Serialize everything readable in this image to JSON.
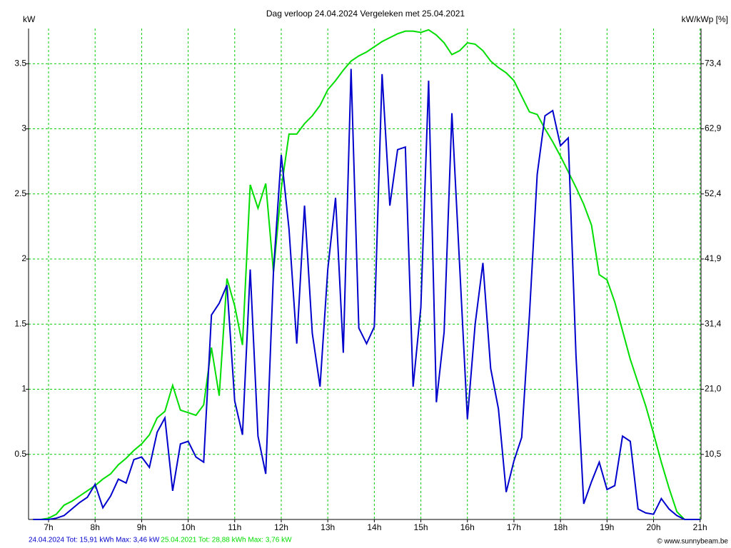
{
  "chart_data": {
    "type": "line",
    "title": "Dag  verloop 24.04.2024   Vergeleken met 25.04.2021",
    "y_label": "kW",
    "y2_label": "kW/kWp [%]",
    "credit": "© www.sunnybeam.be",
    "x": [
      6.6667,
      6.8333,
      7,
      7.1667,
      7.3333,
      7.5,
      7.6667,
      7.8333,
      8,
      8.1667,
      8.3333,
      8.5,
      8.6667,
      8.8333,
      9,
      9.1667,
      9.3333,
      9.5,
      9.6667,
      9.8333,
      10,
      10.1667,
      10.3333,
      10.5,
      10.6667,
      10.8333,
      11,
      11.1667,
      11.3333,
      11.5,
      11.6667,
      11.8333,
      12,
      12.1667,
      12.3333,
      12.5,
      12.6667,
      12.8333,
      13,
      13.1667,
      13.3333,
      13.5,
      13.6667,
      13.8333,
      14,
      14.1667,
      14.3333,
      14.5,
      14.6667,
      14.8333,
      15,
      15.1667,
      15.3333,
      15.5,
      15.6667,
      15.8333,
      16,
      16.1667,
      16.3333,
      16.5,
      16.6667,
      16.8333,
      17,
      17.1667,
      17.3333,
      17.5,
      17.6667,
      17.8333,
      18,
      18.1667,
      18.3333,
      18.5,
      18.6667,
      18.8333,
      19,
      19.1667,
      19.3333,
      19.5,
      19.6667,
      19.8333,
      20,
      20.1667,
      20.3333,
      20.5,
      20.6667,
      20.8333,
      21
    ],
    "series": [
      {
        "name": "24.04.2024 Tot: 15,91 kWh Max: 3,46 kW",
        "color": "#0000cc",
        "values": [
          0,
          0,
          0,
          0.01,
          0.03,
          0.08,
          0.13,
          0.17,
          0.27,
          0.09,
          0.18,
          0.31,
          0.28,
          0.46,
          0.48,
          0.4,
          0.67,
          0.78,
          0.22,
          0.58,
          0.6,
          0.48,
          0.44,
          1.57,
          1.66,
          1.8,
          0.91,
          0.65,
          1.92,
          0.64,
          0.35,
          1.91,
          2.8,
          2.23,
          1.35,
          2.41,
          1.43,
          1.02,
          1.92,
          2.47,
          1.28,
          3.46,
          1.47,
          1.35,
          1.48,
          3.42,
          2.41,
          2.84,
          2.86,
          1.02,
          1.63,
          3.37,
          0.9,
          1.44,
          3.12,
          1.95,
          0.77,
          1.5,
          1.97,
          1.16,
          0.85,
          0.21,
          0.45,
          0.63,
          1.57,
          2.65,
          3.1,
          3.14,
          2.87,
          2.93,
          1.26,
          0.12,
          0.29,
          0.44,
          0.23,
          0.26,
          0.64,
          0.6,
          0.08,
          0.05,
          0.04,
          0.16,
          0.08,
          0.03,
          0,
          0,
          0
        ]
      },
      {
        "name": "25.04.2021 Tot: 28,88 kWh Max: 3,76 kW",
        "color": "#00dd00",
        "values": [
          0,
          0,
          0.01,
          0.04,
          0.11,
          0.14,
          0.18,
          0.22,
          0.26,
          0.31,
          0.35,
          0.42,
          0.47,
          0.53,
          0.58,
          0.65,
          0.78,
          0.83,
          1.03,
          0.84,
          0.82,
          0.8,
          0.88,
          1.32,
          0.95,
          1.85,
          1.64,
          1.34,
          2.57,
          2.39,
          2.58,
          1.9,
          2.54,
          2.96,
          2.96,
          3.04,
          3.1,
          3.18,
          3.3,
          3.37,
          3.45,
          3.52,
          3.56,
          3.59,
          3.63,
          3.67,
          3.7,
          3.73,
          3.75,
          3.75,
          3.74,
          3.76,
          3.72,
          3.66,
          3.57,
          3.6,
          3.66,
          3.65,
          3.6,
          3.52,
          3.47,
          3.43,
          3.37,
          3.25,
          3.13,
          3.11,
          3.0,
          2.9,
          2.79,
          2.67,
          2.55,
          2.42,
          2.26,
          1.88,
          1.84,
          1.67,
          1.45,
          1.23,
          1.05,
          0.87,
          0.66,
          0.44,
          0.24,
          0.06,
          0,
          0,
          0
        ]
      }
    ],
    "xlim": [
      6.57,
      21.02
    ],
    "xticks": [
      {
        "value": 7,
        "label": "7h"
      },
      {
        "value": 8,
        "label": "8h"
      },
      {
        "value": 9,
        "label": "9h"
      },
      {
        "value": 10,
        "label": "10h"
      },
      {
        "value": 11,
        "label": "11h"
      },
      {
        "value": 12,
        "label": "12h"
      },
      {
        "value": 13,
        "label": "13h"
      },
      {
        "value": 14,
        "label": "14h"
      },
      {
        "value": 15,
        "label": "15h"
      },
      {
        "value": 16,
        "label": "16h"
      },
      {
        "value": 17,
        "label": "17h"
      },
      {
        "value": 18,
        "label": "18h"
      },
      {
        "value": 19,
        "label": "19h"
      },
      {
        "value": 20,
        "label": "20h"
      },
      {
        "value": 21,
        "label": "21h"
      }
    ],
    "ylim": [
      0,
      3.77
    ],
    "yticks": [
      0.5,
      1,
      1.5,
      2,
      2.5,
      3,
      3.5
    ],
    "y2lim": [
      0,
      79.05
    ],
    "y2ticks": [
      {
        "value": 10.48,
        "label": "10,5"
      },
      {
        "value": 20.97,
        "label": "21,0"
      },
      {
        "value": 31.45,
        "label": "31,4"
      },
      {
        "value": 41.94,
        "label": "41,9"
      },
      {
        "value": 52.42,
        "label": "52,4"
      },
      {
        "value": 62.9,
        "label": "62,9"
      },
      {
        "value": 73.39,
        "label": "73,4"
      }
    ],
    "grid": true,
    "grid_color": "#00cc00"
  }
}
